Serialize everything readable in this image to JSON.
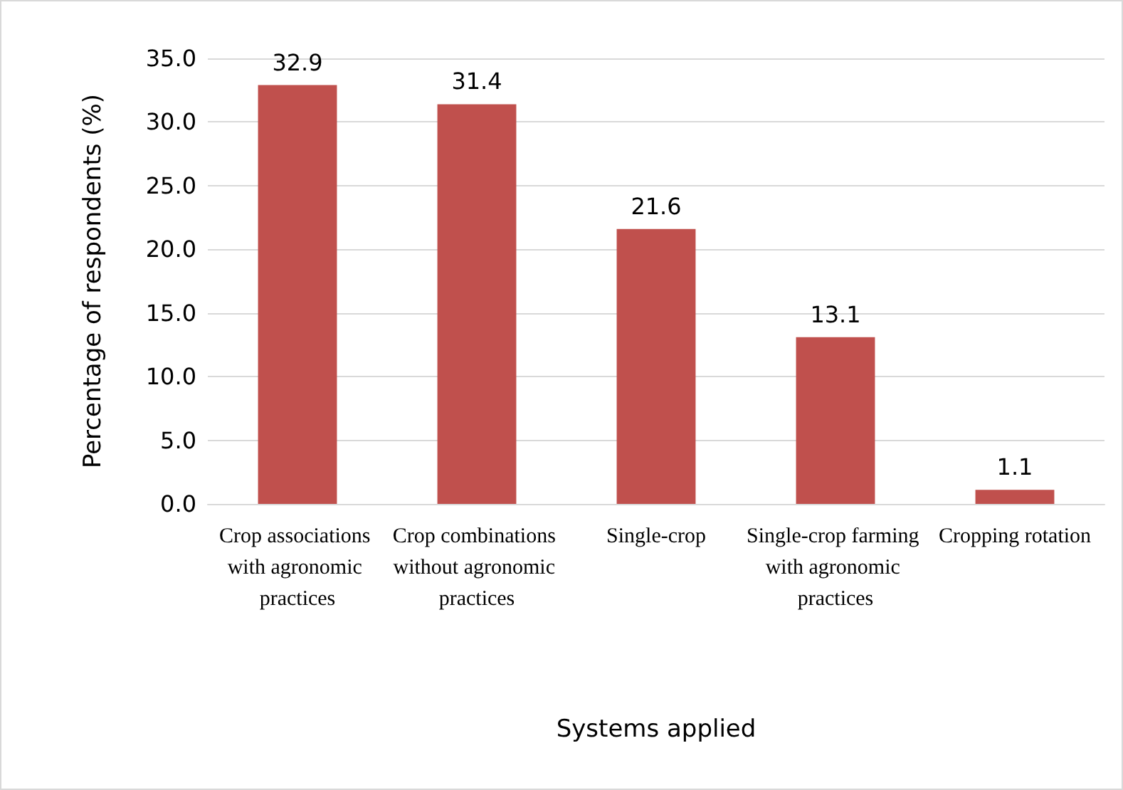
{
  "chart_data": {
    "type": "bar",
    "xlabel": "Systems applied",
    "ylabel": "Percentage of respondents (%)",
    "categories": [
      "Crop associations with agronomic practices",
      "Crop combinations without agronomic practices",
      "Single-crop",
      "Single-crop farming with agronomic practices",
      "Cropping rotation"
    ],
    "values": [
      32.9,
      31.4,
      21.6,
      13.1,
      1.1
    ],
    "color": "#c0504d",
    "data_labels": true,
    "grid": "y",
    "ylim": [
      0,
      35
    ],
    "yticks": [
      {
        "value": 0,
        "label": "0.0"
      },
      {
        "value": 5,
        "label": "5.0"
      },
      {
        "value": 10,
        "label": "10.0"
      },
      {
        "value": 15,
        "label": "15.0"
      },
      {
        "value": 20,
        "label": "20.0"
      },
      {
        "value": 25,
        "label": "25.0"
      },
      {
        "value": 30,
        "label": "30.0"
      },
      {
        "value": 35,
        "label": "35.0"
      }
    ]
  }
}
